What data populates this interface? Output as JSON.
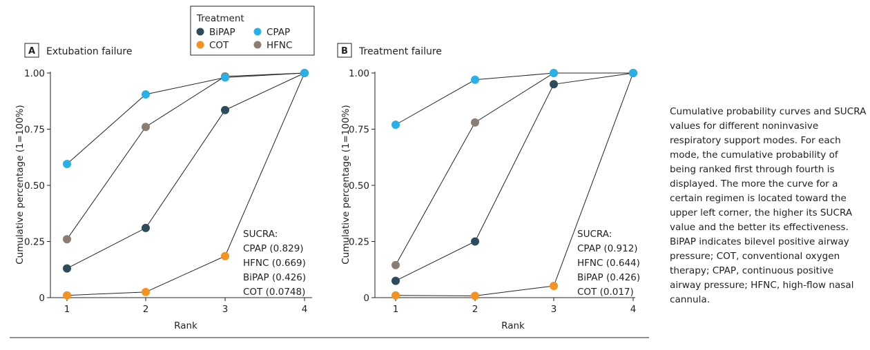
{
  "legend": {
    "title": "Treatment",
    "entries": [
      {
        "label": "BiPAP",
        "color": "#2e4b5c"
      },
      {
        "label": "CPAP",
        "color": "#27b1e6"
      },
      {
        "label": "COT",
        "color": "#f39321"
      },
      {
        "label": "HFNC",
        "color": "#8b7d72"
      }
    ]
  },
  "chart_data": [
    {
      "type": "line",
      "panel_letter": "A",
      "title": "Extubation failure",
      "xlabel": "Rank",
      "ylabel": "Cumulative percentage (1=100%)",
      "x": [
        1,
        2,
        3,
        4
      ],
      "x_tick_labels": [
        "1",
        "2",
        "3",
        "4"
      ],
      "ylim": [
        0,
        1
      ],
      "y_ticks": [
        0,
        0.25,
        0.5,
        0.75,
        1.0
      ],
      "y_tick_labels": [
        "0",
        "0.25",
        "0.50",
        "0.75",
        "1.00"
      ],
      "series": [
        {
          "name": "BiPAP",
          "color": "#2e4b5c",
          "values": [
            0.13,
            0.31,
            0.835,
            1.0
          ]
        },
        {
          "name": "CPAP",
          "color": "#27b1e6",
          "values": [
            0.595,
            0.905,
            0.98,
            1.0
          ]
        },
        {
          "name": "COT",
          "color": "#f39321",
          "values": [
            0.01,
            0.025,
            0.185,
            1.0
          ]
        },
        {
          "name": "HFNC",
          "color": "#8b7d72",
          "values": [
            0.26,
            0.76,
            0.985,
            1.0
          ]
        }
      ],
      "sucra": {
        "title": "SUCRA:",
        "lines": [
          "CPAP (0.829)",
          "HFNC (0.669)",
          "BiPAP (0.426)",
          "COT (0.0748)"
        ]
      }
    },
    {
      "type": "line",
      "panel_letter": "B",
      "title": "Treatment failure",
      "xlabel": "Rank",
      "ylabel": "Cumulative percentage (1=100%)",
      "x": [
        1,
        2,
        3,
        4
      ],
      "x_tick_labels": [
        "1",
        "2",
        "3",
        "4"
      ],
      "ylim": [
        0,
        1
      ],
      "y_ticks": [
        0,
        0.25,
        0.5,
        0.75,
        1.0
      ],
      "y_tick_labels": [
        "0",
        "0.25",
        "0.50",
        "0.75",
        "1.00"
      ],
      "series": [
        {
          "name": "BiPAP",
          "color": "#2e4b5c",
          "values": [
            0.075,
            0.25,
            0.95,
            1.0
          ]
        },
        {
          "name": "CPAP",
          "color": "#27b1e6",
          "values": [
            0.77,
            0.97,
            1.0,
            1.0
          ]
        },
        {
          "name": "COT",
          "color": "#f39321",
          "values": [
            0.01,
            0.008,
            0.052,
            1.0
          ]
        },
        {
          "name": "HFNC",
          "color": "#8b7d72",
          "values": [
            0.145,
            0.78,
            1.0,
            1.0
          ]
        }
      ],
      "sucra": {
        "title": "SUCRA:",
        "lines": [
          "CPAP (0.912)",
          "HFNC (0.644)",
          "BiPAP (0.426)",
          "COT (0.017)"
        ]
      }
    }
  ],
  "caption": "Cumulative probability curves and SUCRA values for different noninvasive respiratory support modes. For each mode, the cumulative probability of being ranked first through fourth is displayed. The more the curve for a certain regimen is located toward the upper left corner, the higher its SUCRA value and the better its effectiveness. BiPAP indicates bilevel positive airway pressure; COT, conventional oxygen therapy; CPAP, continuous positive airway pressure; HFNC, high-flow nasal cannula."
}
